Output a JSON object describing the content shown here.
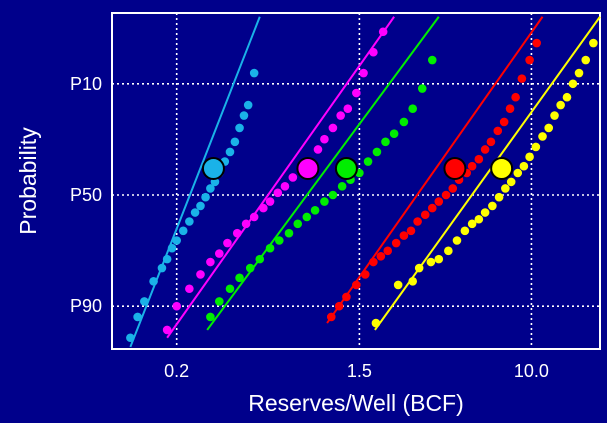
{
  "chart_data": {
    "type": "scatter",
    "title": "",
    "xlabel": "Reserves/Well (BCF)",
    "ylabel": "Probability",
    "x_scale": "log",
    "x_ticks": [
      {
        "value": 0.2,
        "label": "0.2"
      },
      {
        "value": 1.5,
        "label": "1.5"
      },
      {
        "value": 10.0,
        "label": "10.0"
      }
    ],
    "y_scale": "probability",
    "y_ticks": [
      {
        "value": 10,
        "label": "P10"
      },
      {
        "value": 50,
        "label": "P50"
      },
      {
        "value": 90,
        "label": "P90"
      }
    ],
    "xlim": [
      0.098,
      21.3
    ],
    "ylim": [
      96.2,
      1.8
    ],
    "grid": true,
    "series": [
      {
        "color": "#1ab2e8",
        "mean": {
          "x": 0.3,
          "p": 38
        },
        "fit": [
          {
            "x": 0.12,
            "p": 96
          },
          {
            "x": 0.5,
            "p": 2
          }
        ],
        "points": [
          [
            0.12,
            95
          ],
          [
            0.13,
            92
          ],
          [
            0.14,
            89
          ],
          [
            0.155,
            84
          ],
          [
            0.17,
            80
          ],
          [
            0.18,
            77
          ],
          [
            0.19,
            73
          ],
          [
            0.2,
            70
          ],
          [
            0.215,
            66
          ],
          [
            0.23,
            62
          ],
          [
            0.245,
            58
          ],
          [
            0.26,
            55
          ],
          [
            0.275,
            51
          ],
          [
            0.29,
            47
          ],
          [
            0.305,
            44
          ],
          [
            0.32,
            40
          ],
          [
            0.34,
            35
          ],
          [
            0.36,
            31
          ],
          [
            0.38,
            27
          ],
          [
            0.4,
            22
          ],
          [
            0.42,
            18
          ],
          [
            0.44,
            15
          ],
          [
            0.47,
            8
          ]
        ]
      },
      {
        "color": "#ff00ff",
        "mean": {
          "x": 0.85,
          "p": 38
        },
        "fit": [
          {
            "x": 0.18,
            "p": 95
          },
          {
            "x": 2.2,
            "p": 2
          }
        ],
        "points": [
          [
            0.18,
            94
          ],
          [
            0.2,
            90
          ],
          [
            0.23,
            86
          ],
          [
            0.26,
            82
          ],
          [
            0.29,
            78
          ],
          [
            0.32,
            75
          ],
          [
            0.35,
            71
          ],
          [
            0.39,
            67
          ],
          [
            0.43,
            63
          ],
          [
            0.47,
            60
          ],
          [
            0.52,
            56
          ],
          [
            0.56,
            53
          ],
          [
            0.61,
            49
          ],
          [
            0.66,
            46
          ],
          [
            0.72,
            42
          ],
          [
            0.79,
            38
          ],
          [
            0.86,
            35
          ],
          [
            0.95,
            30
          ],
          [
            1.02,
            26
          ],
          [
            1.12,
            22
          ],
          [
            1.22,
            18
          ],
          [
            1.32,
            16
          ],
          [
            1.45,
            12
          ],
          [
            1.57,
            8
          ],
          [
            1.75,
            5
          ],
          [
            1.95,
            3
          ]
        ]
      },
      {
        "color": "#00ee00",
        "mean": {
          "x": 1.3,
          "p": 38
        },
        "fit": [
          {
            "x": 0.28,
            "p": 94
          },
          {
            "x": 3.6,
            "p": 2
          }
        ],
        "points": [
          [
            0.29,
            92
          ],
          [
            0.32,
            89
          ],
          [
            0.36,
            86
          ],
          [
            0.4,
            83
          ],
          [
            0.45,
            80
          ],
          [
            0.5,
            77
          ],
          [
            0.56,
            73
          ],
          [
            0.62,
            70
          ],
          [
            0.69,
            67
          ],
          [
            0.76,
            63
          ],
          [
            0.84,
            60
          ],
          [
            0.92,
            57
          ],
          [
            1.02,
            53
          ],
          [
            1.12,
            50
          ],
          [
            1.24,
            46
          ],
          [
            1.36,
            43
          ],
          [
            1.5,
            40
          ],
          [
            1.65,
            35
          ],
          [
            1.82,
            31
          ],
          [
            2.0,
            27
          ],
          [
            2.2,
            24
          ],
          [
            2.45,
            20
          ],
          [
            2.7,
            16
          ],
          [
            3.0,
            11
          ],
          [
            3.35,
            6
          ]
        ]
      },
      {
        "color": "#ff0000",
        "mean": {
          "x": 4.3,
          "p": 38
        },
        "fit": [
          {
            "x": 1.05,
            "p": 93
          },
          {
            "x": 11.3,
            "p": 2
          }
        ],
        "points": [
          [
            1.1,
            92
          ],
          [
            1.2,
            90
          ],
          [
            1.3,
            88
          ],
          [
            1.45,
            85
          ],
          [
            1.6,
            82
          ],
          [
            1.75,
            78
          ],
          [
            1.9,
            76
          ],
          [
            2.05,
            74
          ],
          [
            2.25,
            71
          ],
          [
            2.45,
            68
          ],
          [
            2.65,
            66
          ],
          [
            2.85,
            62
          ],
          [
            3.1,
            59
          ],
          [
            3.35,
            56
          ],
          [
            3.6,
            53
          ],
          [
            3.9,
            50
          ],
          [
            4.2,
            47
          ],
          [
            4.5,
            43
          ],
          [
            4.9,
            40
          ],
          [
            5.2,
            37
          ],
          [
            5.6,
            34
          ],
          [
            6.0,
            30
          ],
          [
            6.4,
            27
          ],
          [
            6.9,
            23
          ],
          [
            7.4,
            20
          ],
          [
            7.9,
            16
          ],
          [
            8.4,
            13
          ],
          [
            9.0,
            9
          ],
          [
            9.8,
            6
          ],
          [
            10.6,
            4
          ]
        ]
      },
      {
        "color": "#ffff00",
        "mean": {
          "x": 7.2,
          "p": 38
        },
        "fit": [
          {
            "x": 1.78,
            "p": 94
          },
          {
            "x": 21.3,
            "p": 2
          }
        ],
        "points": [
          [
            1.8,
            93
          ],
          [
            2.3,
            85
          ],
          [
            2.7,
            84
          ],
          [
            2.9,
            80
          ],
          [
            3.3,
            78
          ],
          [
            3.6,
            77
          ],
          [
            4.0,
            74
          ],
          [
            4.4,
            70
          ],
          [
            4.8,
            66
          ],
          [
            5.2,
            63
          ],
          [
            5.6,
            61
          ],
          [
            6.0,
            58
          ],
          [
            6.5,
            55
          ],
          [
            7.0,
            51
          ],
          [
            7.5,
            47
          ],
          [
            8.0,
            44
          ],
          [
            8.6,
            40
          ],
          [
            9.2,
            37
          ],
          [
            9.8,
            33
          ],
          [
            10.5,
            29
          ],
          [
            11.3,
            25
          ],
          [
            12.1,
            22
          ],
          [
            12.9,
            18
          ],
          [
            13.8,
            15
          ],
          [
            14.8,
            13
          ],
          [
            15.8,
            10
          ],
          [
            16.9,
            8
          ],
          [
            18.2,
            6
          ],
          [
            19.8,
            4
          ]
        ]
      }
    ]
  }
}
